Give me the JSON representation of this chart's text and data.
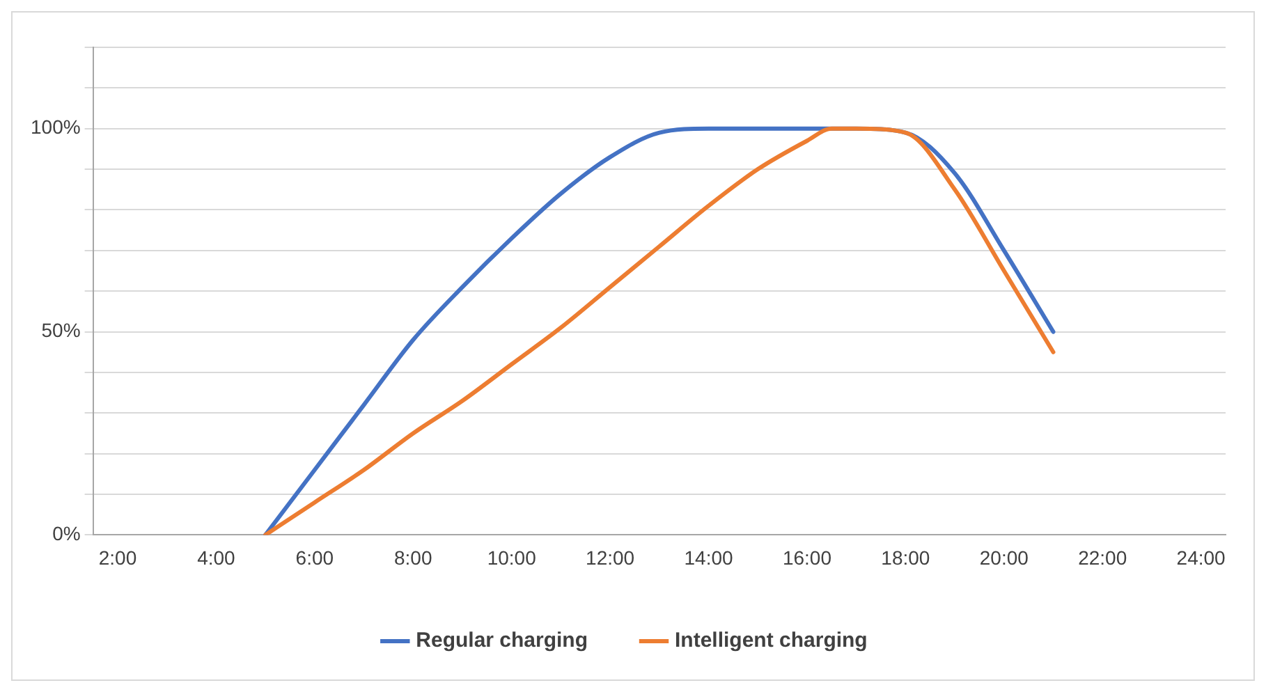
{
  "chart_data": {
    "type": "line",
    "x": [
      5,
      6,
      7,
      8,
      9,
      10,
      11,
      12,
      13,
      14,
      15,
      16,
      17,
      18,
      19,
      20,
      21
    ],
    "series": [
      {
        "name": "Regular charging",
        "color": "#4472c4",
        "values": [
          0,
          16,
          32,
          48,
          61,
          73,
          84,
          93,
          99,
          100,
          100,
          100,
          100,
          99,
          89,
          70,
          50
        ]
      },
      {
        "name": "Intelligent charging",
        "color": "#ed7d31",
        "x": [
          5,
          6,
          7,
          8,
          9,
          10,
          11,
          12,
          13,
          14,
          15,
          16,
          16.5,
          17,
          18,
          19,
          20,
          21
        ],
        "values": [
          0,
          8,
          16,
          25,
          33,
          42,
          51,
          61,
          71,
          81,
          90,
          97,
          100,
          100,
          99,
          85,
          65,
          45
        ]
      }
    ],
    "xlim": [
      1.5,
      24.5
    ],
    "xticks": [
      {
        "value": 2,
        "label": "2:00"
      },
      {
        "value": 4,
        "label": "4:00"
      },
      {
        "value": 6,
        "label": "6:00"
      },
      {
        "value": 8,
        "label": "8:00"
      },
      {
        "value": 10,
        "label": "10:00"
      },
      {
        "value": 12,
        "label": "12:00"
      },
      {
        "value": 14,
        "label": "14:00"
      },
      {
        "value": 16,
        "label": "16:00"
      },
      {
        "value": 18,
        "label": "18:00"
      },
      {
        "value": 20,
        "label": "20:00"
      },
      {
        "value": 22,
        "label": "22:00"
      },
      {
        "value": 24,
        "label": "24:00"
      }
    ],
    "ylim": [
      0,
      120
    ],
    "yticks": [
      {
        "value": 0,
        "label": "0%"
      },
      {
        "value": 10,
        "label": null
      },
      {
        "value": 20,
        "label": null
      },
      {
        "value": 30,
        "label": null
      },
      {
        "value": 40,
        "label": null
      },
      {
        "value": 50,
        "label": "50%"
      },
      {
        "value": 60,
        "label": null
      },
      {
        "value": 70,
        "label": null
      },
      {
        "value": 80,
        "label": null
      },
      {
        "value": 90,
        "label": null
      },
      {
        "value": 100,
        "label": "100%"
      },
      {
        "value": 110,
        "label": null
      },
      {
        "value": 120,
        "label": null
      }
    ],
    "grid": "y",
    "legend": "bottom",
    "marker": "none",
    "line_style": "solid"
  }
}
